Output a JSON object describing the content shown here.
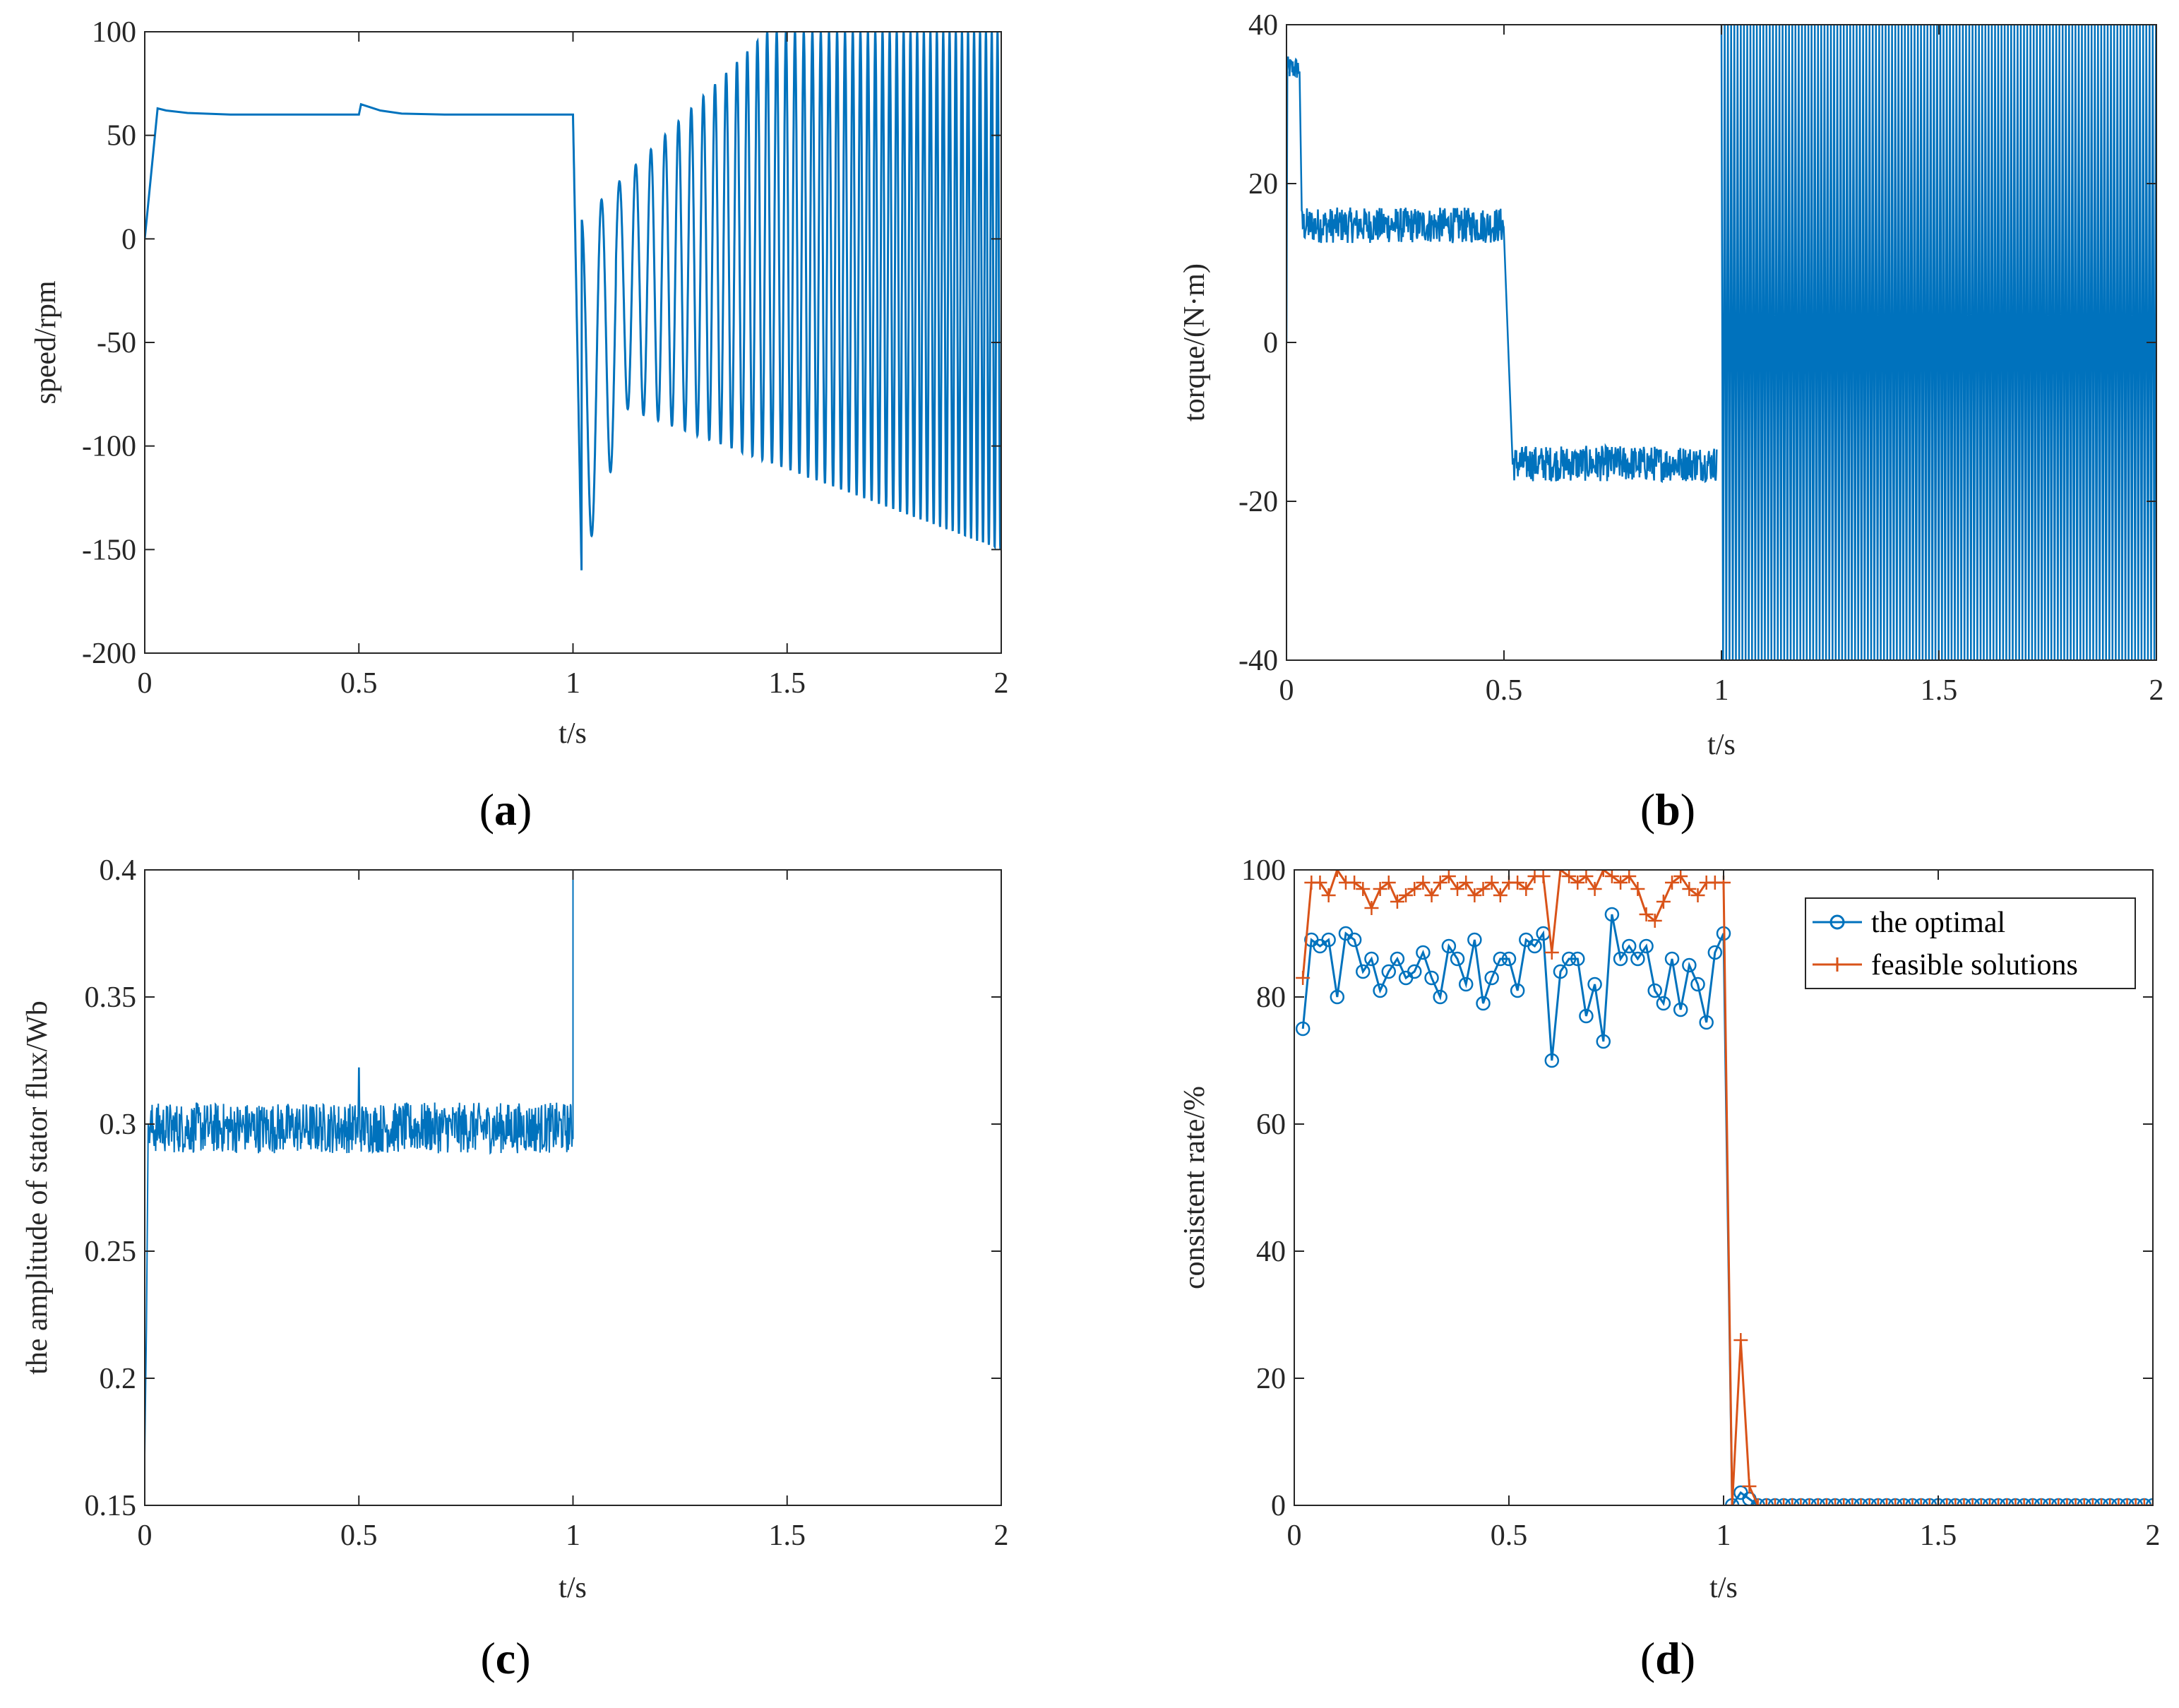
{
  "colors": {
    "series_blue": "#0072BD",
    "series_orange": "#D95319",
    "axis": "#262626"
  },
  "chart_data": [
    {
      "type": "line",
      "id": "a",
      "caption": "a",
      "xlabel": "t/s",
      "ylabel": "speed/rpm",
      "xlim": [
        0,
        2
      ],
      "ylim": [
        -200,
        100
      ],
      "xticks": [
        0,
        0.5,
        1,
        1.5,
        2
      ],
      "xtick_labels": [
        "0",
        "0.5",
        "1",
        "1.5",
        "2"
      ],
      "yticks": [
        -200,
        -150,
        -100,
        -50,
        0,
        50,
        100
      ],
      "ytick_labels": [
        "-200",
        "-150",
        "-100",
        "-50",
        "0",
        "50",
        "100"
      ],
      "series": [
        {
          "name": "speed",
          "color": "#0072BD",
          "description": "rises to ~63 rpm, settles ~60, bump at 0.5 s to ~65, then after 1 s strong oscillation growing up to 100 and lower envelope from about -160 to -150",
          "x": [
            0,
            0.03,
            0.05,
            0.1,
            0.2,
            0.3,
            0.4,
            0.5,
            0.505,
            0.55,
            0.6,
            0.7,
            0.8,
            0.9,
            1.0
          ],
          "y": [
            0,
            63,
            62,
            60.8,
            60,
            60,
            60,
            60,
            65,
            62,
            60.5,
            60,
            60,
            60,
            60
          ]
        }
      ]
    },
    {
      "type": "line",
      "id": "b",
      "caption": "b",
      "xlabel": "t/s",
      "ylabel": "torque/(N·m)",
      "xlim": [
        0,
        2
      ],
      "ylim": [
        -40,
        40
      ],
      "xticks": [
        0,
        0.5,
        1,
        1.5,
        2
      ],
      "xtick_labels": [
        "0",
        "0.5",
        "1",
        "1.5",
        "2"
      ],
      "yticks": [
        -40,
        -20,
        0,
        20,
        40
      ],
      "ytick_labels": [
        "-40",
        "-20",
        "0",
        "20",
        "40"
      ],
      "series": [
        {
          "name": "torque",
          "color": "#0072BD",
          "description": "~35 until 0.03 s, band 12-17 until 0.5 s, band -18 to -13 until 1 s, then full-scale oscillation between -40 and 40",
          "segments": [
            {
              "x": [
                0,
                0.03
              ],
              "y_low": 33,
              "y_high": 36
            },
            {
              "x": [
                0.035,
                0.5
              ],
              "y_low": 12.5,
              "y_high": 17
            },
            {
              "x": [
                0.52,
                0.99
              ],
              "y_low": -17.5,
              "y_high": -13
            }
          ]
        }
      ]
    },
    {
      "type": "line",
      "id": "c",
      "caption": "c",
      "xlabel": "t/s",
      "ylabel": "the amplitude of stator flux/Wb",
      "xlim": [
        0,
        2
      ],
      "ylim": [
        0.15,
        0.4
      ],
      "xticks": [
        0,
        0.5,
        1,
        1.5,
        2
      ],
      "xtick_labels": [
        "0",
        "0.5",
        "1",
        "1.5",
        "2"
      ],
      "yticks": [
        0.15,
        0.2,
        0.25,
        0.3,
        0.35,
        0.4
      ],
      "ytick_labels": [
        "0.15",
        "0.2",
        "0.25",
        "0.3",
        "0.35",
        "0.4"
      ],
      "series": [
        {
          "name": "flux",
          "color": "#0072BD",
          "description": "rises from ~0.17 to 0.30 quickly, noisy band 0.285-0.312 until 1 s, spike at 0.5 s to 0.322, jumps to 0.4 at 1 s",
          "x": [
            0,
            0.01,
            1.0,
            1.0
          ],
          "y": [
            0.17,
            0.3,
            0.3,
            0.4
          ]
        }
      ]
    },
    {
      "type": "line",
      "id": "d",
      "caption": "d",
      "xlabel": "t/s",
      "ylabel": "consistent rate/%",
      "xlim": [
        0,
        2
      ],
      "ylim": [
        0,
        100
      ],
      "xticks": [
        0,
        0.5,
        1,
        1.5,
        2
      ],
      "xtick_labels": [
        "0",
        "0.5",
        "1",
        "1.5",
        "2"
      ],
      "yticks": [
        0,
        20,
        40,
        60,
        80,
        100
      ],
      "ytick_labels": [
        "0",
        "20",
        "40",
        "60",
        "80",
        "100"
      ],
      "legend": {
        "location": "top-right",
        "entries": [
          "the optimal",
          "feasible solutions"
        ]
      },
      "series": [
        {
          "name": "the optimal",
          "color": "#0072BD",
          "marker": "circle",
          "x": [
            0.02,
            0.04,
            0.06,
            0.08,
            0.1,
            0.12,
            0.14,
            0.16,
            0.18,
            0.2,
            0.22,
            0.24,
            0.26,
            0.28,
            0.3,
            0.32,
            0.34,
            0.36,
            0.38,
            0.4,
            0.42,
            0.44,
            0.46,
            0.48,
            0.5,
            0.52,
            0.54,
            0.56,
            0.58,
            0.6,
            0.62,
            0.64,
            0.66,
            0.68,
            0.7,
            0.72,
            0.74,
            0.76,
            0.78,
            0.8,
            0.82,
            0.84,
            0.86,
            0.88,
            0.9,
            0.92,
            0.94,
            0.96,
            0.98,
            1.0,
            1.02,
            1.04,
            1.06,
            1.08,
            1.1,
            1.12,
            1.14,
            1.16,
            1.18,
            1.2,
            1.22,
            1.24,
            1.26,
            1.28,
            1.3,
            1.32,
            1.34,
            1.36,
            1.38,
            1.4,
            1.42,
            1.44,
            1.46,
            1.48,
            1.5,
            1.52,
            1.54,
            1.56,
            1.58,
            1.6,
            1.62,
            1.64,
            1.66,
            1.68,
            1.7,
            1.72,
            1.74,
            1.76,
            1.78,
            1.8,
            1.82,
            1.84,
            1.86,
            1.88,
            1.9,
            1.92,
            1.94,
            1.96,
            1.98,
            2.0
          ],
          "y": [
            75,
            89,
            88,
            89,
            80,
            90,
            89,
            84,
            86,
            81,
            84,
            86,
            83,
            84,
            87,
            83,
            80,
            88,
            86,
            82,
            89,
            79,
            83,
            86,
            86,
            81,
            89,
            88,
            90,
            70,
            84,
            86,
            86,
            77,
            82,
            73,
            93,
            86,
            88,
            86,
            88,
            81,
            79,
            86,
            78,
            85,
            82,
            76,
            87,
            90,
            0,
            2,
            1,
            0,
            0,
            0,
            0,
            0,
            0,
            0,
            0,
            0,
            0,
            0,
            0,
            0,
            0,
            0,
            0,
            0,
            0,
            0,
            0,
            0,
            0,
            0,
            0,
            0,
            0,
            0,
            0,
            0,
            0,
            0,
            0,
            0,
            0,
            0,
            0,
            0,
            0,
            0,
            0,
            0,
            0,
            0,
            0,
            0,
            0,
            0
          ]
        },
        {
          "name": "feasible solutions",
          "color": "#D95319",
          "marker": "plus",
          "x": [
            0.02,
            0.04,
            0.06,
            0.08,
            0.1,
            0.12,
            0.14,
            0.16,
            0.18,
            0.2,
            0.22,
            0.24,
            0.26,
            0.28,
            0.3,
            0.32,
            0.34,
            0.36,
            0.38,
            0.4,
            0.42,
            0.44,
            0.46,
            0.48,
            0.5,
            0.52,
            0.54,
            0.56,
            0.58,
            0.6,
            0.62,
            0.64,
            0.66,
            0.68,
            0.7,
            0.72,
            0.74,
            0.76,
            0.78,
            0.8,
            0.82,
            0.84,
            0.86,
            0.88,
            0.9,
            0.92,
            0.94,
            0.96,
            0.98,
            1.0,
            1.02,
            1.04,
            1.06,
            1.08,
            1.1,
            1.12,
            1.14,
            1.16,
            1.18,
            1.2,
            1.22,
            1.24,
            1.26,
            1.28,
            1.3,
            1.32,
            1.34,
            1.36,
            1.38,
            1.4,
            1.42,
            1.44,
            1.46,
            1.48,
            1.5,
            1.52,
            1.54,
            1.56,
            1.58,
            1.6,
            1.62,
            1.64,
            1.66,
            1.68,
            1.7,
            1.72,
            1.74,
            1.76,
            1.78,
            1.8,
            1.82,
            1.84,
            1.86,
            1.88,
            1.9,
            1.92,
            1.94,
            1.96,
            1.98,
            2.0
          ],
          "y": [
            83,
            98,
            98,
            96,
            100,
            98,
            98,
            97,
            94,
            97,
            98,
            95,
            96,
            97,
            98,
            96,
            98,
            99,
            97,
            98,
            96,
            97,
            98,
            96,
            98,
            98,
            97,
            99,
            99,
            87,
            100,
            99,
            98,
            99,
            97,
            100,
            99,
            98,
            99,
            97,
            93,
            92,
            95,
            98,
            99,
            97,
            96,
            98,
            98,
            98,
            0,
            26,
            3,
            0,
            0,
            0,
            0,
            0,
            0,
            0,
            0,
            0,
            0,
            0,
            0,
            0,
            0,
            0,
            0,
            0,
            0,
            0,
            0,
            0,
            0,
            0,
            0,
            0,
            0,
            0,
            0,
            0,
            0,
            0,
            0,
            0,
            0,
            0,
            0,
            0,
            0,
            0,
            0,
            0,
            0,
            0,
            0,
            0,
            0,
            0
          ]
        }
      ]
    }
  ]
}
